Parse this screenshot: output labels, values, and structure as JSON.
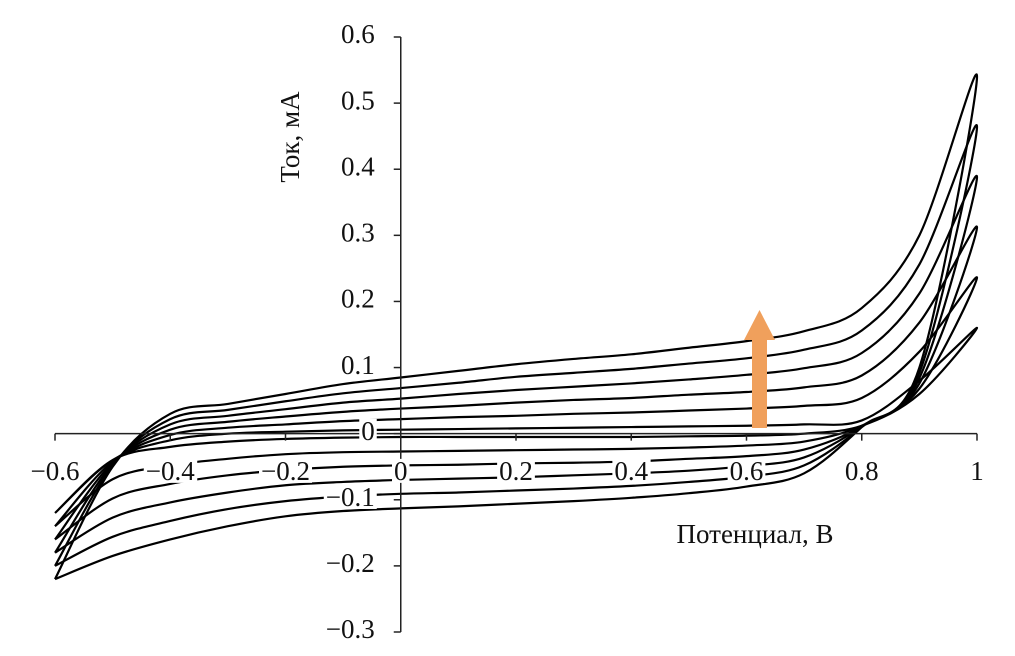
{
  "chart_data": {
    "type": "line",
    "xlabel": "Потенциал, В",
    "ylabel": "Ток, мА",
    "x": [
      -0.6,
      -0.5,
      -0.4,
      -0.3,
      -0.2,
      -0.1,
      0,
      0.1,
      0.2,
      0.3,
      0.4,
      0.5,
      0.6,
      0.7,
      0.8,
      0.9,
      1,
      0.9,
      0.8,
      0.7,
      0.6,
      0.5,
      0.4,
      0.3,
      0.2,
      0.1,
      0,
      -0.1,
      -0.2,
      -0.3,
      -0.4,
      -0.5,
      -0.6
    ],
    "series": [
      {
        "color": "#000000",
        "values": [
          -0.12,
          -0.04,
          -0.01,
          0,
          0.003,
          0.005,
          0.006,
          0.007,
          0.008,
          0.009,
          0.01,
          0.011,
          0.012,
          0.014,
          0.02,
          0.08,
          0.16,
          0.06,
          0.012,
          0,
          -0.003,
          -0.004,
          -0.005,
          -0.005,
          -0.005,
          -0.005,
          -0.005,
          -0.006,
          -0.008,
          -0.012,
          -0.02,
          -0.04,
          -0.12
        ]
      },
      {
        "color": "#000000",
        "values": [
          -0.14,
          -0.042,
          -0.002,
          0.009,
          0.014,
          0.019,
          0.022,
          0.025,
          0.027,
          0.03,
          0.032,
          0.035,
          0.038,
          0.042,
          0.054,
          0.124,
          0.236,
          0.068,
          0.012,
          -0.012,
          -0.018,
          -0.021,
          -0.023,
          -0.024,
          -0.025,
          -0.026,
          -0.027,
          -0.028,
          -0.031,
          -0.038,
          -0.048,
          -0.069,
          -0.14
        ]
      },
      {
        "color": "#000000",
        "values": [
          -0.16,
          -0.044,
          0.006,
          0.018,
          0.026,
          0.033,
          0.038,
          0.042,
          0.047,
          0.051,
          0.054,
          0.059,
          0.063,
          0.07,
          0.088,
          0.168,
          0.312,
          0.076,
          0.011,
          -0.024,
          -0.034,
          -0.038,
          -0.042,
          -0.044,
          -0.045,
          -0.047,
          -0.048,
          -0.05,
          -0.055,
          -0.063,
          -0.076,
          -0.098,
          -0.16
        ]
      },
      {
        "color": "#000000",
        "values": [
          -0.18,
          -0.046,
          0.014,
          0.027,
          0.037,
          0.047,
          0.053,
          0.06,
          0.066,
          0.071,
          0.076,
          0.082,
          0.089,
          0.099,
          0.122,
          0.212,
          0.388,
          0.084,
          0.011,
          -0.036,
          -0.049,
          -0.056,
          -0.06,
          -0.063,
          -0.066,
          -0.068,
          -0.07,
          -0.073,
          -0.078,
          -0.089,
          -0.104,
          -0.127,
          -0.18
        ]
      },
      {
        "color": "#000000",
        "values": [
          -0.2,
          -0.048,
          0.022,
          0.036,
          0.049,
          0.061,
          0.069,
          0.077,
          0.086,
          0.092,
          0.098,
          0.106,
          0.114,
          0.127,
          0.156,
          0.256,
          0.464,
          0.092,
          0.01,
          -0.048,
          -0.065,
          -0.073,
          -0.079,
          -0.083,
          -0.086,
          -0.089,
          -0.091,
          -0.095,
          -0.102,
          -0.114,
          -0.132,
          -0.156,
          -0.2
        ]
      },
      {
        "color": "#000000",
        "values": [
          -0.22,
          -0.05,
          0.03,
          0.045,
          0.06,
          0.075,
          0.085,
          0.095,
          0.105,
          0.113,
          0.12,
          0.13,
          0.14,
          0.155,
          0.19,
          0.3,
          0.54,
          0.1,
          0.01,
          -0.06,
          -0.08,
          -0.09,
          -0.097,
          -0.102,
          -0.106,
          -0.11,
          -0.113,
          -0.117,
          -0.125,
          -0.14,
          -0.16,
          -0.185,
          -0.22
        ]
      }
    ],
    "xlim": [
      -0.6,
      1
    ],
    "ylim": [
      -0.3,
      0.6
    ],
    "xticks": [
      {
        "value": -0.6,
        "label": "−0.6"
      },
      {
        "value": -0.4,
        "label": "−0.4"
      },
      {
        "value": -0.2,
        "label": "−0.2"
      },
      0,
      0.2,
      0.4,
      0.6,
      0.8,
      1
    ],
    "yticks": [
      {
        "value": -0.3,
        "label": "−0.3"
      },
      {
        "value": -0.2,
        "label": "−0.2"
      },
      {
        "value": -0.1,
        "label": "−0.1"
      },
      0,
      0.1,
      0.2,
      0.3,
      0.4,
      0.5,
      0.6
    ],
    "grid": false
  }
}
